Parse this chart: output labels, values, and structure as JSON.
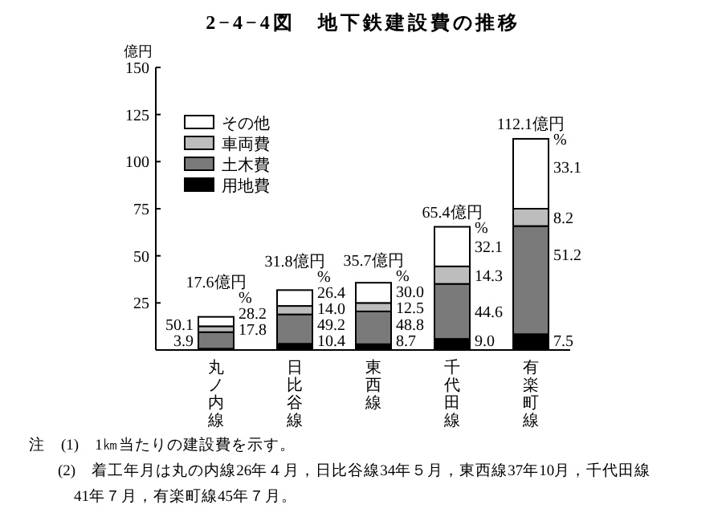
{
  "chart_data": {
    "type": "bar",
    "stacked": true,
    "title": "2−4−4図　地下鉄建設費の推移",
    "ylabel": "億円",
    "categories": [
      "丸ノ内線",
      "日比谷線",
      "東西線",
      "千代田線",
      "有楽町線"
    ],
    "series": [
      {
        "name": "用地費",
        "color": "#000000",
        "values": [
          0.7,
          3.3,
          3.1,
          5.9,
          8.4
        ]
      },
      {
        "name": "土木費",
        "color": "#7a7a7a",
        "values": [
          8.8,
          15.6,
          17.4,
          29.2,
          57.4
        ]
      },
      {
        "name": "車両費",
        "color": "#bdbdbd",
        "values": [
          3.1,
          4.5,
          4.5,
          9.3,
          9.2
        ]
      },
      {
        "name": "その他",
        "color": "#ffffff",
        "values": [
          5.0,
          8.4,
          10.7,
          21.0,
          37.1
        ]
      }
    ],
    "totals": [
      "17.6億円",
      "31.8億円",
      "35.7億円",
      "65.4億円",
      "112.1億円"
    ],
    "ylim": [
      0,
      150
    ],
    "yticks": [
      25,
      50,
      75,
      100,
      125,
      150
    ],
    "legend": "top left",
    "annotations": [
      {
        "text": "3.9",
        "x": "丸ノ内線",
        "y": 0.7
      },
      {
        "text": "50.1",
        "x": "丸ノ内線",
        "y": 9.5
      },
      {
        "text": "17.8",
        "x": "丸ノ内線",
        "y": 12.6
      },
      {
        "text": "28.2",
        "x": "丸ノ内線",
        "y": 17.6
      },
      {
        "text": "%",
        "x": "丸ノ内線",
        "y": 17.6
      },
      {
        "text": "10.4",
        "x": "日比谷線",
        "y": 3.3
      },
      {
        "text": "49.2",
        "x": "日比谷線",
        "y": 18.9
      },
      {
        "text": "14.0",
        "x": "日比谷線",
        "y": 23.4
      },
      {
        "text": "26.4",
        "x": "日比谷線",
        "y": 31.8
      },
      {
        "text": "%",
        "x": "日比谷線",
        "y": 31.8
      },
      {
        "text": "8.7",
        "x": "東西線",
        "y": 3.1
      },
      {
        "text": "48.8",
        "x": "東西線",
        "y": 20.5
      },
      {
        "text": "12.5",
        "x": "東西線",
        "y": 25.0
      },
      {
        "text": "30.0",
        "x": "東西線",
        "y": 35.7
      },
      {
        "text": "%",
        "x": "東西線",
        "y": 35.7
      },
      {
        "text": "9.0",
        "x": "千代田線",
        "y": 5.9
      },
      {
        "text": "44.6",
        "x": "千代田線",
        "y": 35.1
      },
      {
        "text": "14.3",
        "x": "千代田線",
        "y": 44.4
      },
      {
        "text": "32.1",
        "x": "千代田線",
        "y": 65.4
      },
      {
        "text": "%",
        "x": "千代田線",
        "y": 65.4
      },
      {
        "text": "7.5",
        "x": "有楽町線",
        "y": 8.4
      },
      {
        "text": "51.2",
        "x": "有楽町線",
        "y": 65.8
      },
      {
        "text": "8.2",
        "x": "有楽町線",
        "y": 75.0
      },
      {
        "text": "33.1",
        "x": "有楽町線",
        "y": 112.1
      },
      {
        "text": "%",
        "x": "有楽町線",
        "y": 112.1
      },
      "注　(1)　1㎞当たりの建設費を示す。",
      "(2)　着工年月は丸の内線26年４月，日比谷線34年５月，東西線37年10月，千代田線",
      "41年７月，有楽町線45年７月。"
    ]
  }
}
